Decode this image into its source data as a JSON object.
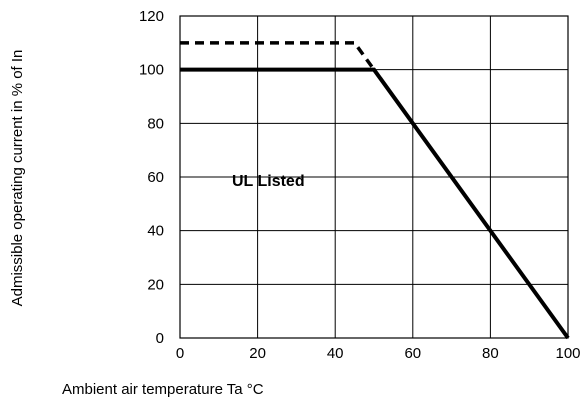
{
  "chart_data": {
    "type": "line",
    "xlabel": "Ambient air temperature Ta °C",
    "ylabel": "Admissible operating current in % of In",
    "xlim": [
      0,
      100
    ],
    "ylim": [
      0,
      120
    ],
    "x_ticks": [
      "0",
      "20",
      "40",
      "60",
      "80",
      "100"
    ],
    "y_ticks": [
      "0",
      "20",
      "40",
      "60",
      "80",
      "100",
      "120"
    ],
    "grid": true,
    "series": [
      {
        "style": "solid",
        "points": [
          [
            0,
            100
          ],
          [
            50,
            100
          ],
          [
            100,
            0
          ]
        ]
      },
      {
        "style": "dashed",
        "points": [
          [
            0,
            110
          ],
          [
            45,
            110
          ],
          [
            50,
            100
          ]
        ]
      }
    ],
    "annotations": [
      {
        "text": "UL Listed",
        "x": 25,
        "y": 50
      }
    ]
  }
}
